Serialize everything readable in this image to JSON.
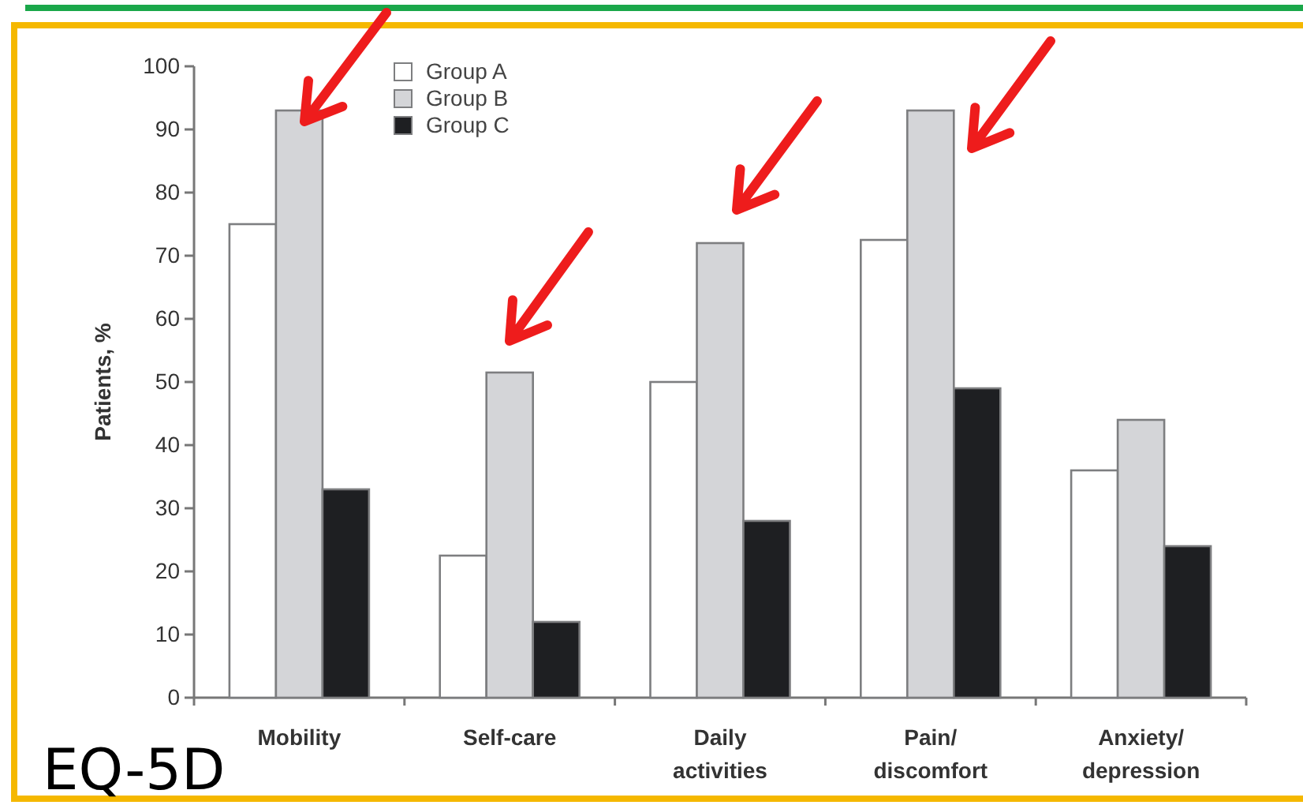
{
  "chart_data": {
    "type": "bar",
    "ylabel": "Patients, %",
    "categories": [
      "Mobility",
      "Self-care",
      "Daily\nactivities",
      "Pain/\ndiscomfort",
      "Anxiety/\ndepression"
    ],
    "series": [
      {
        "name": "Group A",
        "color": "#ffffff",
        "values": [
          75,
          22.5,
          50,
          72.5,
          36
        ]
      },
      {
        "name": "Group B",
        "color": "#d4d5d8",
        "values": [
          93,
          51.5,
          72,
          93,
          44
        ]
      },
      {
        "name": "Group C",
        "color": "#1e1f22",
        "values": [
          33,
          12,
          28,
          49,
          24
        ]
      }
    ],
    "ylim": [
      0,
      100
    ],
    "yticks": [
      0,
      10,
      20,
      30,
      40,
      50,
      60,
      70,
      80,
      90,
      100
    ],
    "grid": false,
    "legend": "top",
    "annotations": [
      "EQ-5D"
    ]
  }
}
